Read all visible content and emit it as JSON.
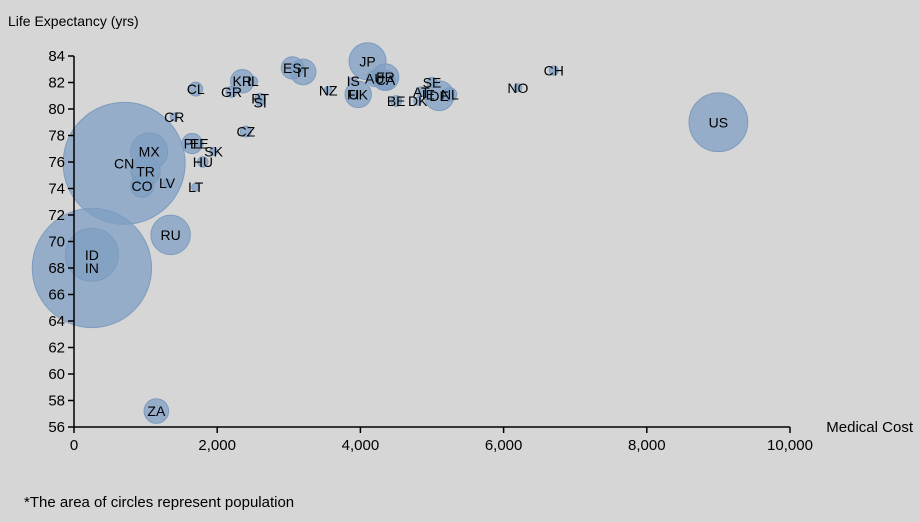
{
  "chart_data": {
    "type": "scatter",
    "xlabel": "Medical Cost",
    "ylabel": "Life Expectancy (yrs)",
    "xlim": [
      0,
      10000
    ],
    "ylim": [
      56,
      84
    ],
    "x_ticks": [
      "0",
      "2,000",
      "4,000",
      "6,000",
      "8,000",
      "10,000"
    ],
    "x_tick_values": [
      0,
      2000,
      4000,
      6000,
      8000,
      10000
    ],
    "y_ticks": [
      "56",
      "58",
      "60",
      "62",
      "64",
      "66",
      "68",
      "70",
      "72",
      "74",
      "76",
      "78",
      "80",
      "82",
      "84"
    ],
    "y_tick_values": [
      56,
      58,
      60,
      62,
      64,
      66,
      68,
      70,
      72,
      74,
      76,
      78,
      80,
      82,
      84
    ],
    "bubble_color": "#7f9fc3",
    "note": "*The area of circles represent population",
    "points": [
      {
        "label": "US",
        "x": 9000,
        "y": 79.0,
        "population": 320
      },
      {
        "label": "CH",
        "x": 6700,
        "y": 82.9,
        "population": 8
      },
      {
        "label": "NO",
        "x": 6200,
        "y": 81.6,
        "population": 5
      },
      {
        "label": "JP",
        "x": 4100,
        "y": 83.6,
        "population": 127
      },
      {
        "label": "AU",
        "x": 4200,
        "y": 82.3,
        "population": 24
      },
      {
        "label": "CA",
        "x": 4350,
        "y": 82.2,
        "population": 36
      },
      {
        "label": "FR",
        "x": 4350,
        "y": 82.4,
        "population": 66
      },
      {
        "label": "IS",
        "x": 3900,
        "y": 82.1,
        "population": 0.3
      },
      {
        "label": "FI",
        "x": 3900,
        "y": 81.1,
        "population": 5
      },
      {
        "label": "UK",
        "x": 3970,
        "y": 81.1,
        "population": 65
      },
      {
        "label": "SE",
        "x": 5000,
        "y": 82.0,
        "population": 10
      },
      {
        "label": "AT",
        "x": 4850,
        "y": 81.3,
        "population": 9
      },
      {
        "label": "IE",
        "x": 4950,
        "y": 81.1,
        "population": 5
      },
      {
        "label": "NL",
        "x": 5250,
        "y": 81.1,
        "population": 17
      },
      {
        "label": "DE",
        "x": 5100,
        "y": 81.0,
        "population": 82
      },
      {
        "label": "DK",
        "x": 4800,
        "y": 80.6,
        "population": 6
      },
      {
        "label": "BE",
        "x": 4500,
        "y": 80.6,
        "population": 11
      },
      {
        "label": "ES",
        "x": 3050,
        "y": 83.1,
        "population": 46
      },
      {
        "label": "IT",
        "x": 3200,
        "y": 82.8,
        "population": 61
      },
      {
        "label": "NZ",
        "x": 3550,
        "y": 81.4,
        "population": 5
      },
      {
        "label": "KR",
        "x": 2350,
        "y": 82.1,
        "population": 51
      },
      {
        "label": "IL",
        "x": 2500,
        "y": 82.1,
        "population": 8
      },
      {
        "label": "GR",
        "x": 2200,
        "y": 81.3,
        "population": 11
      },
      {
        "label": "PT",
        "x": 2600,
        "y": 80.8,
        "population": 10
      },
      {
        "label": "SI",
        "x": 2600,
        "y": 80.5,
        "population": 2
      },
      {
        "label": "CL",
        "x": 1700,
        "y": 81.5,
        "population": 18
      },
      {
        "label": "CZ",
        "x": 2400,
        "y": 78.3,
        "population": 11
      },
      {
        "label": "CR",
        "x": 1400,
        "y": 79.4,
        "population": 5
      },
      {
        "label": "PL",
        "x": 1650,
        "y": 77.4,
        "population": 38
      },
      {
        "label": "EE",
        "x": 1750,
        "y": 77.4,
        "population": 1.3
      },
      {
        "label": "SK",
        "x": 1950,
        "y": 76.8,
        "population": 5
      },
      {
        "label": "HU",
        "x": 1800,
        "y": 76.0,
        "population": 10
      },
      {
        "label": "MX",
        "x": 1050,
        "y": 76.8,
        "population": 127
      },
      {
        "label": "CN",
        "x": 700,
        "y": 75.9,
        "population": 1380
      },
      {
        "label": "TR",
        "x": 1000,
        "y": 75.3,
        "population": 79
      },
      {
        "label": "LV",
        "x": 1300,
        "y": 74.4,
        "population": 2
      },
      {
        "label": "CO",
        "x": 950,
        "y": 74.2,
        "population": 48
      },
      {
        "label": "LT",
        "x": 1700,
        "y": 74.1,
        "population": 3
      },
      {
        "label": "RU",
        "x": 1350,
        "y": 70.5,
        "population": 144
      },
      {
        "label": "ID",
        "x": 250,
        "y": 69.0,
        "population": 260
      },
      {
        "label": "IN",
        "x": 250,
        "y": 68.0,
        "population": 1320
      },
      {
        "label": "ZA",
        "x": 1150,
        "y": 57.2,
        "population": 56
      }
    ]
  }
}
